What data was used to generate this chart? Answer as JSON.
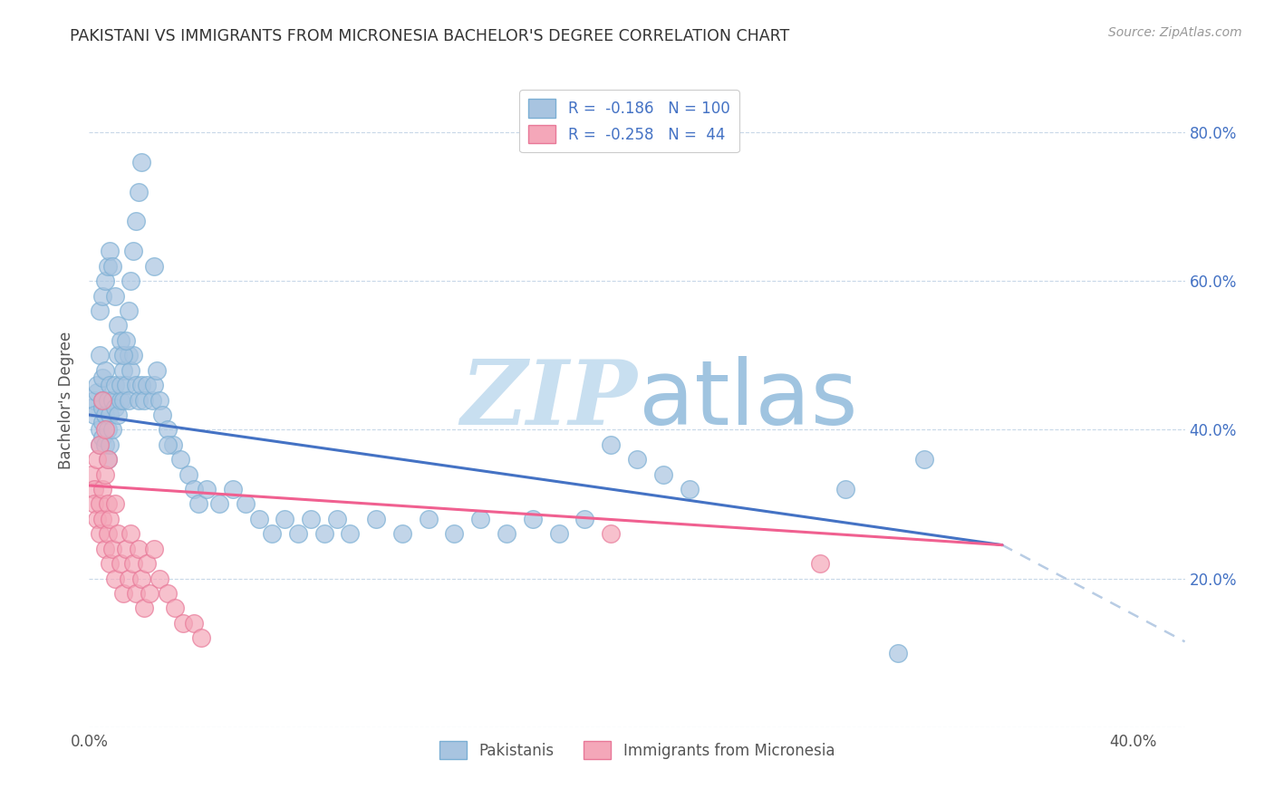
{
  "title": "PAKISTANI VS IMMIGRANTS FROM MICRONESIA BACHELOR'S DEGREE CORRELATION CHART",
  "source": "Source: ZipAtlas.com",
  "ylabel": "Bachelor's Degree",
  "legend_blue_R": "R = ",
  "legend_blue_R_val": "-0.186",
  "legend_blue_N": "N = ",
  "legend_blue_N_val": "100",
  "legend_pink_R": "R = ",
  "legend_pink_R_val": "-0.258",
  "legend_pink_N": "N = ",
  "legend_pink_N_val": " 44",
  "legend_label1": "Pakistanis",
  "legend_label2": "Immigrants from Micronesia",
  "blue_color": "#a8c4e0",
  "blue_edge_color": "#7bafd4",
  "pink_color": "#f4a7b9",
  "pink_edge_color": "#e87898",
  "blue_line_color": "#4472c4",
  "pink_line_color": "#f06090",
  "dashed_line_color": "#b8cce4",
  "watermark_zip_color": "#c8dff0",
  "watermark_atlas_color": "#a0c4e0",
  "xlim": [
    0.0,
    0.42
  ],
  "ylim": [
    0.0,
    0.88
  ],
  "ytick_positions": [
    0.0,
    0.2,
    0.4,
    0.6,
    0.8
  ],
  "ytick_labels_left": [
    "",
    "",
    "",
    "",
    ""
  ],
  "ytick_labels_right": [
    "",
    "20.0%",
    "40.0%",
    "60.0%",
    "80.0%"
  ],
  "xtick_positions": [
    0.0,
    0.1,
    0.2,
    0.3,
    0.4
  ],
  "xtick_labels": [
    "0.0%",
    "",
    "",
    "",
    "40.0%"
  ],
  "blue_line_x": [
    0.0,
    0.35
  ],
  "blue_line_y": [
    0.42,
    0.245
  ],
  "pink_line_x": [
    0.0,
    0.42
  ],
  "pink_line_y": [
    0.325,
    0.115
  ],
  "dash_line_x": [
    0.35,
    0.42
  ],
  "dash_line_y": [
    0.245,
    0.115
  ],
  "blue_x": [
    0.001,
    0.002,
    0.002,
    0.003,
    0.003,
    0.004,
    0.004,
    0.004,
    0.005,
    0.005,
    0.005,
    0.005,
    0.005,
    0.006,
    0.006,
    0.006,
    0.007,
    0.007,
    0.007,
    0.008,
    0.008,
    0.008,
    0.009,
    0.009,
    0.01,
    0.01,
    0.011,
    0.011,
    0.012,
    0.012,
    0.013,
    0.013,
    0.014,
    0.015,
    0.015,
    0.016,
    0.017,
    0.018,
    0.019,
    0.02,
    0.021,
    0.022,
    0.024,
    0.025,
    0.026,
    0.027,
    0.028,
    0.03,
    0.032,
    0.035,
    0.038,
    0.04,
    0.042,
    0.045,
    0.05,
    0.055,
    0.06,
    0.065,
    0.07,
    0.075,
    0.08,
    0.085,
    0.09,
    0.095,
    0.1,
    0.11,
    0.12,
    0.13,
    0.14,
    0.15,
    0.16,
    0.17,
    0.18,
    0.19,
    0.2,
    0.21,
    0.22,
    0.23,
    0.29,
    0.31,
    0.004,
    0.005,
    0.006,
    0.007,
    0.008,
    0.009,
    0.01,
    0.011,
    0.012,
    0.013,
    0.014,
    0.015,
    0.016,
    0.017,
    0.018,
    0.019,
    0.02,
    0.025,
    0.03,
    0.32
  ],
  "blue_y": [
    0.43,
    0.44,
    0.42,
    0.45,
    0.46,
    0.4,
    0.38,
    0.5,
    0.41,
    0.43,
    0.39,
    0.44,
    0.47,
    0.38,
    0.42,
    0.48,
    0.4,
    0.36,
    0.44,
    0.38,
    0.46,
    0.42,
    0.44,
    0.4,
    0.43,
    0.46,
    0.5,
    0.42,
    0.44,
    0.46,
    0.48,
    0.44,
    0.46,
    0.44,
    0.5,
    0.48,
    0.5,
    0.46,
    0.44,
    0.46,
    0.44,
    0.46,
    0.44,
    0.46,
    0.48,
    0.44,
    0.42,
    0.4,
    0.38,
    0.36,
    0.34,
    0.32,
    0.3,
    0.32,
    0.3,
    0.32,
    0.3,
    0.28,
    0.26,
    0.28,
    0.26,
    0.28,
    0.26,
    0.28,
    0.26,
    0.28,
    0.26,
    0.28,
    0.26,
    0.28,
    0.26,
    0.28,
    0.26,
    0.28,
    0.38,
    0.36,
    0.34,
    0.32,
    0.32,
    0.1,
    0.56,
    0.58,
    0.6,
    0.62,
    0.64,
    0.62,
    0.58,
    0.54,
    0.52,
    0.5,
    0.52,
    0.56,
    0.6,
    0.64,
    0.68,
    0.72,
    0.76,
    0.62,
    0.38,
    0.36
  ],
  "pink_x": [
    0.001,
    0.002,
    0.002,
    0.003,
    0.003,
    0.004,
    0.004,
    0.005,
    0.005,
    0.006,
    0.006,
    0.007,
    0.007,
    0.008,
    0.008,
    0.009,
    0.01,
    0.01,
    0.011,
    0.012,
    0.013,
    0.014,
    0.015,
    0.016,
    0.017,
    0.018,
    0.019,
    0.02,
    0.021,
    0.022,
    0.023,
    0.025,
    0.027,
    0.03,
    0.033,
    0.036,
    0.04,
    0.043,
    0.2,
    0.28,
    0.004,
    0.005,
    0.006,
    0.007
  ],
  "pink_y": [
    0.34,
    0.32,
    0.3,
    0.36,
    0.28,
    0.3,
    0.26,
    0.32,
    0.28,
    0.34,
    0.24,
    0.3,
    0.26,
    0.22,
    0.28,
    0.24,
    0.3,
    0.2,
    0.26,
    0.22,
    0.18,
    0.24,
    0.2,
    0.26,
    0.22,
    0.18,
    0.24,
    0.2,
    0.16,
    0.22,
    0.18,
    0.24,
    0.2,
    0.18,
    0.16,
    0.14,
    0.14,
    0.12,
    0.26,
    0.22,
    0.38,
    0.44,
    0.4,
    0.36
  ]
}
